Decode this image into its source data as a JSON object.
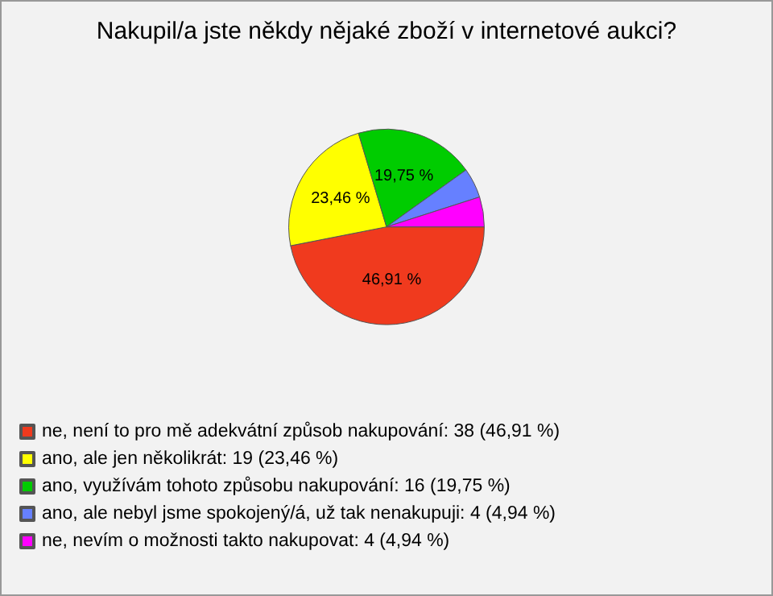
{
  "chart_data": {
    "type": "pie",
    "title": "Nakupil/a jste někdy nějaké zboží v internetové aukci?",
    "categories": [
      "ne, není to pro mě adekvátní způsob nakupování: 38 (46,91 %)",
      "ano, ale jen několikrát: 19 (23,46 %)",
      "ano, využívám tohoto způsobu nakupování: 16 (19,75 %)",
      "ano, ale nebyl jsme spokojený/á, už tak nenakupuji: 4 (4,94 %)",
      "ne, nevím o možnosti takto nakupovat: 4 (4,94 %)"
    ],
    "values": [
      46.91,
      23.46,
      19.75,
      4.94,
      4.94
    ],
    "colors": [
      "#f03a1e",
      "#ffff00",
      "#00cc00",
      "#6680ff",
      "#ff00ff"
    ],
    "value_labels": [
      "46,91 %",
      "23,46 %",
      "19,75 %",
      null,
      null
    ],
    "legend": "bottom left"
  }
}
